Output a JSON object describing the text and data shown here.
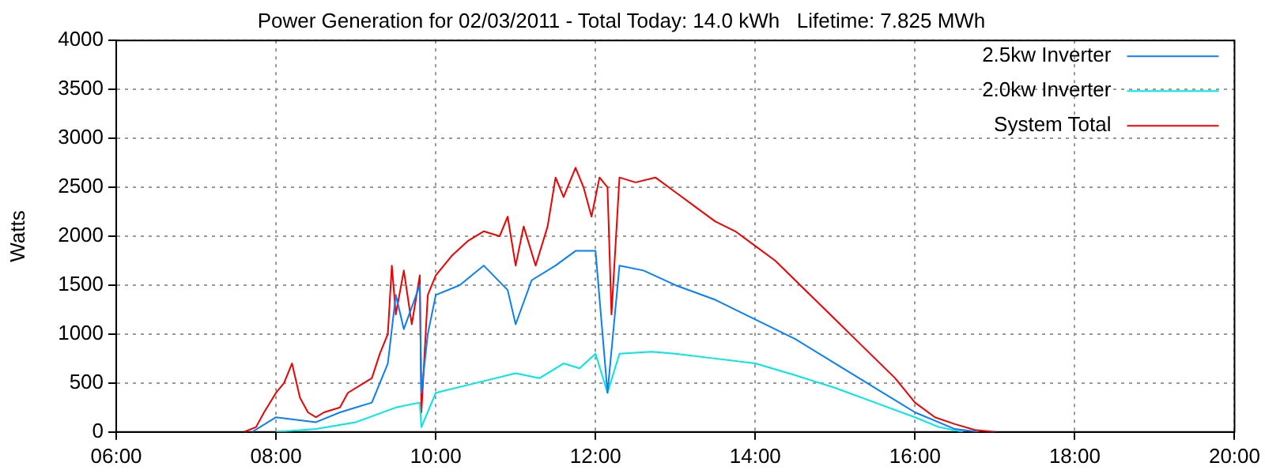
{
  "chart_data": {
    "type": "line",
    "title": "Power Generation for 02/03/2011 - Total Today: 14.0 kWh   Lifetime: 7.825 MWh",
    "ylabel": "Watts",
    "xlim": [
      6,
      20
    ],
    "xticks": [
      {
        "value": 6,
        "label": "06:00"
      },
      {
        "value": 8,
        "label": "08:00"
      },
      {
        "value": 10,
        "label": "10:00"
      },
      {
        "value": 12,
        "label": "12:00"
      },
      {
        "value": 14,
        "label": "14:00"
      },
      {
        "value": 16,
        "label": "16:00"
      },
      {
        "value": 18,
        "label": "18:00"
      },
      {
        "value": 20,
        "label": "20:00"
      }
    ],
    "ylim": [
      0,
      4000
    ],
    "yticks": [
      0,
      500,
      1000,
      1500,
      2000,
      2500,
      3000,
      3500,
      4000
    ],
    "grid": true,
    "legend": "top right",
    "marker": "none",
    "line_style": "solid",
    "series": [
      {
        "name": "2.5kw Inverter",
        "color": "#0a7ff5",
        "x": [
          7.7,
          8.0,
          8.5,
          8.8,
          9.0,
          9.2,
          9.4,
          9.5,
          9.6,
          9.8,
          9.82,
          9.9,
          10.0,
          10.3,
          10.6,
          10.9,
          11.0,
          11.2,
          11.5,
          11.75,
          12.0,
          12.15,
          12.3,
          12.6,
          13.0,
          13.5,
          14.0,
          14.5,
          15.0,
          15.5,
          16.0,
          16.5,
          16.8
        ],
        "values": [
          0,
          150,
          100,
          200,
          250,
          300,
          700,
          1400,
          1050,
          1500,
          400,
          1000,
          1400,
          1500,
          1700,
          1450,
          1100,
          1550,
          1700,
          1850,
          1850,
          400,
          1700,
          1650,
          1500,
          1350,
          1150,
          950,
          700,
          450,
          200,
          30,
          0
        ]
      },
      {
        "name": "2.0kw Inverter",
        "color": "#00e5e5",
        "x": [
          8.0,
          8.5,
          9.0,
          9.5,
          9.8,
          9.82,
          10.0,
          10.5,
          11.0,
          11.3,
          11.6,
          11.8,
          12.0,
          12.15,
          12.3,
          12.7,
          13.0,
          13.5,
          14.0,
          14.5,
          15.0,
          15.5,
          16.0,
          16.3,
          16.6
        ],
        "values": [
          0,
          30,
          100,
          250,
          300,
          50,
          400,
          500,
          600,
          550,
          700,
          650,
          800,
          400,
          800,
          820,
          800,
          750,
          700,
          580,
          450,
          300,
          150,
          50,
          0
        ]
      },
      {
        "name": "System Total",
        "color": "#f00000",
        "x": [
          7.6,
          7.75,
          7.85,
          8.0,
          8.1,
          8.2,
          8.3,
          8.4,
          8.5,
          8.6,
          8.8,
          8.9,
          9.1,
          9.2,
          9.3,
          9.4,
          9.45,
          9.5,
          9.6,
          9.7,
          9.8,
          9.82,
          9.9,
          10.0,
          10.2,
          10.4,
          10.6,
          10.8,
          10.9,
          11.0,
          11.1,
          11.25,
          11.4,
          11.5,
          11.6,
          11.75,
          11.85,
          11.95,
          12.05,
          12.15,
          12.2,
          12.3,
          12.5,
          12.75,
          13.0,
          13.25,
          13.5,
          13.75,
          14.0,
          14.25,
          14.5,
          14.75,
          15.0,
          15.25,
          15.5,
          15.75,
          16.0,
          16.25,
          16.5,
          16.75,
          17.0
        ],
        "values": [
          0,
          50,
          200,
          400,
          500,
          700,
          350,
          200,
          150,
          200,
          250,
          400,
          500,
          550,
          800,
          1000,
          1700,
          1200,
          1650,
          1100,
          1600,
          200,
          1400,
          1600,
          1800,
          1950,
          2050,
          2000,
          2200,
          1700,
          2100,
          1700,
          2100,
          2600,
          2400,
          2700,
          2500,
          2200,
          2600,
          2500,
          1200,
          2600,
          2550,
          2600,
          2450,
          2300,
          2150,
          2050,
          1900,
          1750,
          1550,
          1350,
          1150,
          950,
          750,
          550,
          300,
          150,
          80,
          20,
          0
        ]
      }
    ]
  }
}
